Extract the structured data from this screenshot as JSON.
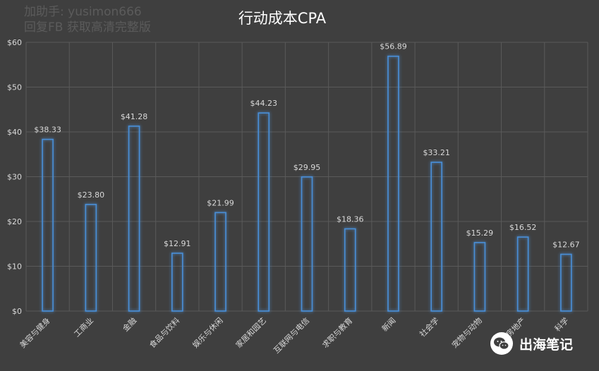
{
  "watermark": {
    "line1": "加助手: yusimon666",
    "line2": "回复FB 获取高清完整版"
  },
  "brand": {
    "name": "出海笔记",
    "icon": "wechat-icon"
  },
  "colors": {
    "background": "#3f3f3f",
    "bar_stroke": "#4a8fd8",
    "bar_glow": "#3a7bd5",
    "text": "#d9d9d9",
    "grid": "#5a5a5a"
  },
  "chart_data": {
    "type": "bar",
    "title": "行动成本CPA",
    "xlabel": "",
    "ylabel": "",
    "ylim": [
      0,
      60
    ],
    "yticks": [
      "$0",
      "$10",
      "$20",
      "$30",
      "$40",
      "$50",
      "$60"
    ],
    "grid": true,
    "categories": [
      "美容与健身",
      "工商业",
      "金融",
      "食品与饮料",
      "娱乐与休闲",
      "家居和园艺",
      "互联网与电信",
      "求职与教育",
      "新闻",
      "社会学",
      "宠物与动物",
      "房地产",
      "科学"
    ],
    "values": [
      38.33,
      23.8,
      41.28,
      12.91,
      21.99,
      44.23,
      29.95,
      18.36,
      56.89,
      33.21,
      15.29,
      16.52,
      12.67
    ],
    "data_labels": [
      "$38.33",
      "$23.80",
      "$41.28",
      "$12.91",
      "$21.99",
      "$44.23",
      "$29.95",
      "$18.36",
      "$56.89",
      "$33.21",
      "$15.29",
      "$16.52",
      "$12.67"
    ]
  }
}
